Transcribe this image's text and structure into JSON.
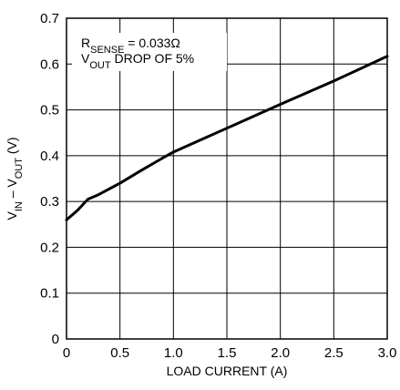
{
  "chart_data": {
    "type": "line",
    "title": "",
    "xlabel": "LOAD CURRENT (A)",
    "ylabel": {
      "parts": [
        {
          "text": "V",
          "sub": false
        },
        {
          "text": "IN",
          "sub": true
        },
        {
          "text": " – V",
          "sub": false
        },
        {
          "text": "OUT",
          "sub": true
        },
        {
          "text": " (V)",
          "sub": false
        }
      ]
    },
    "xlim": [
      0,
      3.0
    ],
    "ylim": [
      0,
      0.7
    ],
    "x_ticks": [
      "0",
      "0.5",
      "1.0",
      "1.5",
      "2.0",
      "2.5",
      "3.0"
    ],
    "y_ticks": [
      "0",
      "0.1",
      "0.2",
      "0.3",
      "0.4",
      "0.5",
      "0.6",
      "0.7"
    ],
    "grid": true,
    "annotation": [
      {
        "parts": [
          {
            "text": "R",
            "sub": false
          },
          {
            "text": "SENSE",
            "sub": true
          },
          {
            "text": " = 0.033Ω",
            "sub": false
          }
        ]
      },
      {
        "parts": [
          {
            "text": "V",
            "sub": false
          },
          {
            "text": "OUT",
            "sub": true
          },
          {
            "text": " DROP OF 5%",
            "sub": false
          }
        ]
      }
    ],
    "series": [
      {
        "x": [
          0,
          0.1,
          0.2,
          0.3,
          0.5,
          0.7,
          0.9,
          1.0,
          1.25,
          1.5,
          2.0,
          2.5,
          3.0
        ],
        "y": [
          0.26,
          0.28,
          0.305,
          0.315,
          0.34,
          0.368,
          0.395,
          0.408,
          0.434,
          0.46,
          0.512,
          0.563,
          0.617
        ]
      }
    ],
    "line_color": "#000000"
  }
}
